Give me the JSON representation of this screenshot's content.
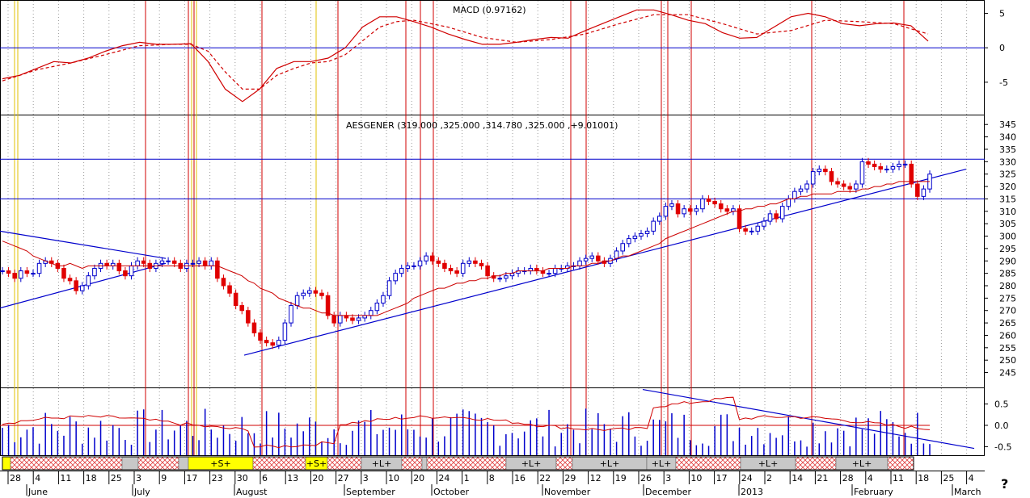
{
  "chart_data": [
    {
      "type": "line",
      "panel": "macd",
      "title": "MACD (0.97162)",
      "ylim": [
        -9,
        6
      ],
      "y_ticks": [
        5,
        0,
        -5
      ],
      "series": [
        {
          "style": "solid",
          "color": "#d00000",
          "x": [
            0,
            5,
            10,
            15,
            20,
            25,
            30,
            35,
            40,
            45,
            50,
            55,
            60,
            65,
            70,
            75,
            80,
            85,
            90,
            95,
            100,
            105,
            110,
            115,
            120,
            125,
            130,
            135,
            140,
            145,
            150,
            155,
            160,
            165,
            170,
            175,
            180,
            185,
            190,
            195,
            200,
            205,
            210,
            215,
            220,
            225,
            230,
            235,
            240,
            245,
            250,
            255,
            260,
            265,
            270
          ],
          "values": [
            -4.5,
            -4.0,
            -3.0,
            -2.0,
            -2.2,
            -1.5,
            -0.5,
            0.3,
            0.8,
            0.5,
            0.5,
            0.6,
            -2,
            -6,
            -7.8,
            -6,
            -3,
            -2,
            -2,
            -1.5,
            0,
            3,
            4.5,
            4.5,
            3.8,
            3,
            2,
            1.2,
            0.5,
            0.5,
            0.8,
            1.2,
            1.5,
            1.4,
            2.5,
            3.5,
            4.5,
            5.5,
            5.5,
            4.8,
            4,
            3.5,
            2.2,
            1.4,
            1.5,
            3,
            4.5,
            5,
            4.5,
            3.5,
            3.2,
            3.5,
            3.6,
            3.2,
            0.97
          ]
        },
        {
          "style": "dashed",
          "color": "#d00000",
          "x": [
            0,
            10,
            20,
            30,
            40,
            50,
            55,
            60,
            65,
            70,
            75,
            80,
            85,
            90,
            95,
            100,
            105,
            110,
            115,
            120,
            130,
            140,
            150,
            160,
            170,
            180,
            190,
            200,
            210,
            220,
            230,
            240,
            250,
            260,
            270
          ],
          "values": [
            -4.8,
            -3.2,
            -2.2,
            -1,
            0.3,
            0.5,
            0.5,
            -0.5,
            -3.5,
            -6,
            -6,
            -4,
            -3,
            -2.2,
            -2,
            -1,
            1,
            3,
            3.8,
            4,
            3,
            1.5,
            0.8,
            1.2,
            2,
            3.5,
            4.8,
            4.8,
            3.5,
            2,
            2.5,
            4,
            3.8,
            3.5,
            2
          ]
        }
      ]
    },
    {
      "type": "candlestick",
      "panel": "price",
      "title": "AESGENER (319.000 ,325.000 ,314.780 ,325.000 ,+9.01001)",
      "ylim": [
        239,
        348
      ],
      "y_ticks": [
        345,
        340,
        335,
        330,
        325,
        320,
        315,
        310,
        305,
        300,
        295,
        290,
        285,
        280,
        275,
        270,
        265,
        260,
        255,
        250,
        245
      ],
      "horizontal_levels": [
        331,
        315
      ],
      "close": [
        286,
        285,
        283,
        286,
        285,
        285,
        289,
        290,
        289,
        287,
        283,
        282,
        278,
        280,
        284,
        287,
        289,
        288,
        289,
        286,
        284,
        288,
        290,
        289,
        287,
        289,
        290,
        290,
        289,
        287,
        289,
        289,
        290,
        288,
        290,
        283,
        280,
        277,
        272,
        270,
        265,
        261,
        258,
        257,
        256,
        258,
        265,
        272,
        276,
        277,
        278,
        277,
        276,
        268,
        265,
        268,
        267,
        266,
        267,
        268,
        270,
        273,
        276,
        282,
        285,
        287,
        288,
        288,
        290,
        292,
        290,
        289,
        287,
        286,
        285,
        289,
        290,
        289,
        288,
        284,
        283,
        283,
        284,
        285,
        286,
        286,
        287,
        286,
        285,
        285,
        287,
        287,
        288,
        288,
        290,
        291,
        292,
        290,
        289,
        291,
        294,
        297,
        299,
        300,
        301,
        302,
        306,
        308,
        312,
        313,
        309,
        311,
        310,
        311,
        315,
        314,
        313,
        311,
        310,
        311,
        303,
        302,
        302,
        304,
        306,
        309,
        307,
        312,
        315,
        318,
        319,
        321,
        326,
        327,
        326,
        322,
        321,
        320,
        319,
        321,
        330,
        329,
        328,
        327,
        327,
        328,
        329,
        329,
        321,
        316,
        319,
        325
      ],
      "ma": [
        298,
        297,
        296,
        295,
        294,
        292,
        291,
        290,
        289,
        288,
        288,
        289,
        288,
        287,
        288,
        288,
        288,
        288,
        288,
        288,
        288,
        288,
        288,
        288,
        288,
        288,
        288,
        288,
        288,
        288,
        288,
        288,
        288,
        288,
        288,
        288,
        287,
        286,
        285,
        284,
        282,
        281,
        279,
        278,
        277,
        275,
        274,
        273,
        272,
        271,
        271,
        270,
        269,
        269,
        268,
        268,
        268,
        268,
        268,
        268,
        268,
        268,
        269,
        270,
        271,
        272,
        273,
        275,
        276,
        277,
        278,
        279,
        279,
        280,
        281,
        281,
        282,
        282,
        283,
        283,
        284,
        284,
        285,
        285,
        286,
        286,
        286,
        286,
        286,
        287,
        287,
        287,
        287,
        288,
        288,
        288,
        289,
        289,
        290,
        290,
        291,
        292,
        292,
        293,
        294,
        295,
        296,
        297,
        299,
        300,
        301,
        302,
        303,
        304,
        305,
        306,
        307,
        308,
        309,
        310,
        310,
        311,
        311,
        312,
        312,
        313,
        313,
        314,
        315,
        315,
        316,
        316,
        317,
        317,
        317,
        317,
        318,
        318,
        318,
        318,
        319,
        319,
        320,
        320,
        321,
        321,
        322,
        322,
        322,
        322,
        322,
        322
      ]
    },
    {
      "type": "bar",
      "panel": "volume",
      "ylim": [
        -0.7,
        0.85
      ],
      "y_ticks": [
        0.5,
        0.0,
        -0.5
      ],
      "y_tick_labels": [
        "0.5",
        "0.0",
        "-0.5"
      ],
      "reference_level": 0.0
    }
  ],
  "x_axis": {
    "tick_labels": [
      "28",
      "4",
      "11",
      "18",
      "25",
      "3",
      "9",
      "17",
      "23",
      "30",
      "6",
      "13",
      "20",
      "27",
      "3",
      "10",
      "20",
      "24",
      "1",
      "8",
      "16",
      "22",
      "29",
      "12",
      "19",
      "26",
      "3",
      "10",
      "17",
      "24",
      "2",
      "14",
      "21",
      "28",
      "4",
      "11",
      "18",
      "25",
      "4"
    ],
    "month_labels": [
      "June",
      "July",
      "August",
      "September",
      "October",
      "November",
      "December",
      "2013",
      "February",
      "March"
    ]
  },
  "signal_strip": {
    "segments": [
      {
        "label": "",
        "kind": "yellow"
      },
      {
        "label": "",
        "kind": "hatch"
      },
      {
        "label": "",
        "kind": "gray"
      },
      {
        "label": "",
        "kind": "hatch"
      },
      {
        "label": "",
        "kind": "gray"
      },
      {
        "label": "+S+",
        "kind": "yellow"
      },
      {
        "label": "",
        "kind": "hatch"
      },
      {
        "label": "+S+",
        "kind": "yellow"
      },
      {
        "label": "",
        "kind": "hatch"
      },
      {
        "label": "+L+",
        "kind": "gray"
      },
      {
        "label": "",
        "kind": "hatch"
      },
      {
        "label": "",
        "kind": "gray"
      },
      {
        "label": "",
        "kind": "hatch"
      },
      {
        "label": "+L+",
        "kind": "gray"
      },
      {
        "label": "",
        "kind": "hatch"
      },
      {
        "label": "+L+",
        "kind": "gray"
      },
      {
        "label": "+L+",
        "kind": "gray"
      },
      {
        "label": "",
        "kind": "hatch"
      },
      {
        "label": "+L+",
        "kind": "gray"
      },
      {
        "label": "",
        "kind": "hatch"
      },
      {
        "label": "+L+",
        "kind": "gray"
      },
      {
        "label": "",
        "kind": "hatch"
      }
    ]
  },
  "help_glyph": "?",
  "colors": {
    "up": "#0000cc",
    "down": "#e00000",
    "ma": "#cc0000",
    "trend": "#0000cc",
    "grid": "#999999",
    "hatch": "#e04040",
    "gray": "#c8c8c8",
    "yellow": "#ffff00"
  }
}
